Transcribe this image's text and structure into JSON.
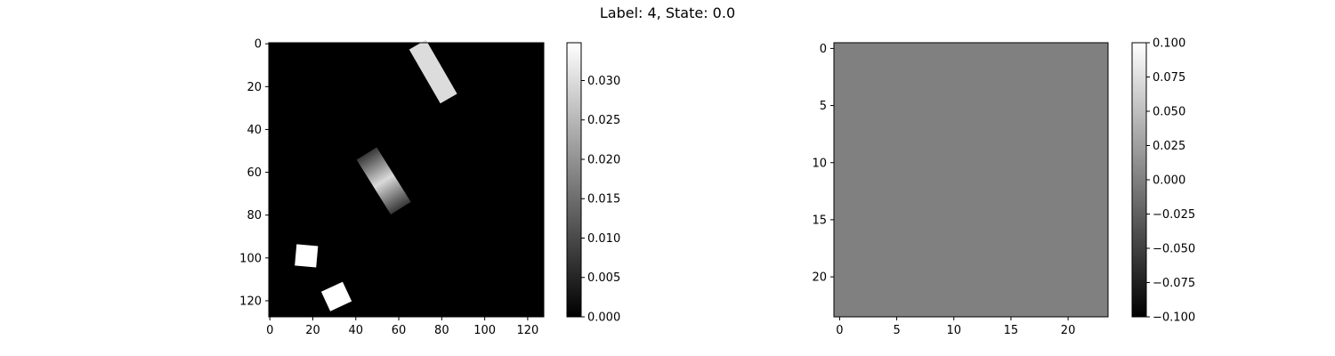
{
  "figure": {
    "suptitle": "Label: 4, State: 0.0"
  },
  "chart_data": [
    {
      "type": "heatmap",
      "title": "",
      "xlabel": "",
      "ylabel": "",
      "xlim": [
        -0.5,
        127.5
      ],
      "ylim": [
        127.5,
        -0.5
      ],
      "x_ticks": [
        0,
        20,
        40,
        60,
        80,
        100,
        120
      ],
      "y_ticks": [
        0,
        20,
        40,
        60,
        80,
        100,
        120
      ],
      "colormap": "gray",
      "background_value": 0.0,
      "colorbar": {
        "range": [
          0,
          0.0348
        ],
        "ticks": [
          0.0,
          0.005,
          0.01,
          0.015,
          0.02,
          0.025,
          0.03
        ],
        "tick_labels": [
          "0.000",
          "0.005",
          "0.010",
          "0.015",
          "0.020",
          "0.025",
          "0.030"
        ]
      },
      "objects": [
        {
          "shape": "rotated-rectangle",
          "center": [
            76,
            13
          ],
          "length": 29,
          "width": 9,
          "angle_deg": 60,
          "value": 0.03,
          "shading": "uniform"
        },
        {
          "shape": "rotated-rectangle",
          "center": [
            53,
            64
          ],
          "length": 30,
          "width": 11,
          "angle_deg": 58,
          "value": 0.022,
          "shading": "gradient-center-bright"
        },
        {
          "shape": "rotated-rectangle",
          "center": [
            17,
            99
          ],
          "length": 10,
          "width": 10,
          "angle_deg": 5,
          "value": 0.0348,
          "shading": "uniform"
        },
        {
          "shape": "rotated-rectangle",
          "center": [
            31,
            118
          ],
          "length": 11,
          "width": 10,
          "angle_deg": -25,
          "value": 0.0348,
          "shading": "uniform"
        }
      ]
    },
    {
      "type": "heatmap",
      "title": "",
      "xlabel": "",
      "ylabel": "",
      "xlim": [
        -0.5,
        23.5
      ],
      "ylim": [
        23.5,
        -0.5
      ],
      "x_ticks": [
        0,
        5,
        10,
        15,
        20
      ],
      "y_ticks": [
        0,
        5,
        10,
        15,
        20
      ],
      "colormap": "gray",
      "background_value": 0.0,
      "colorbar": {
        "range": [
          -0.1,
          0.1
        ],
        "ticks": [
          -0.1,
          -0.075,
          -0.05,
          -0.025,
          0.0,
          0.025,
          0.05,
          0.075,
          0.1
        ],
        "tick_labels": [
          "−0.100",
          "−0.075",
          "−0.050",
          "−0.025",
          "0.000",
          "0.025",
          "0.050",
          "0.075",
          "0.100"
        ]
      },
      "objects": []
    }
  ]
}
